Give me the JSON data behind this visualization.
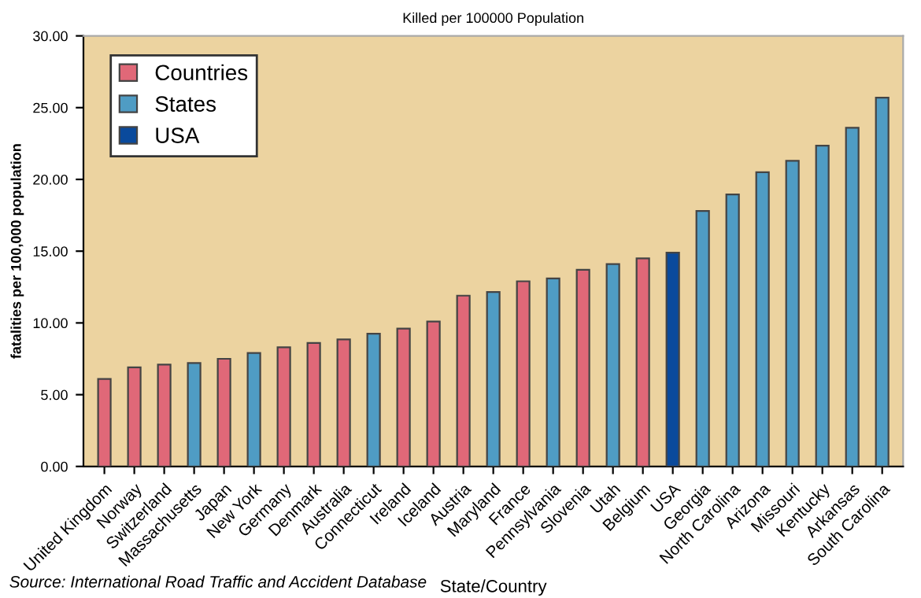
{
  "chart_data": {
    "type": "bar",
    "title": "Killed per 100000 Population",
    "xlabel": "State/Country",
    "ylabel": "fatalities per 100,000 population",
    "categories": [
      "United Kingdom",
      "Norway",
      "Switzerland",
      "Massachusetts",
      "Japan",
      "New York",
      "Germany",
      "Denmark",
      "Australia",
      "Connecticut",
      "Ireland",
      "Iceland",
      "Austria",
      "Maryland",
      "France",
      "Pennsylvania",
      "Slovenia",
      "Utah",
      "Belgium",
      "USA",
      "Georgia",
      "North Carolina",
      "Arizona",
      "Missouri",
      "Kentucky",
      "Arkansas",
      "South Carolina"
    ],
    "series": [
      {
        "name": "Countries",
        "color": "#e06878",
        "values": [
          6.1,
          6.9,
          7.1,
          null,
          7.5,
          null,
          8.3,
          8.6,
          8.85,
          null,
          9.6,
          10.1,
          11.9,
          null,
          12.9,
          null,
          13.7,
          null,
          14.5,
          null,
          null,
          null,
          null,
          null,
          null,
          null,
          null
        ]
      },
      {
        "name": "States",
        "color": "#4f9cc4",
        "values": [
          null,
          null,
          null,
          7.2,
          null,
          7.9,
          null,
          null,
          null,
          9.25,
          null,
          null,
          null,
          12.15,
          null,
          13.1,
          null,
          14.1,
          null,
          null,
          17.8,
          18.95,
          20.5,
          21.3,
          22.35,
          23.6,
          25.7
        ]
      },
      {
        "name": "USA",
        "color": "#0a4a9c",
        "values": [
          null,
          null,
          null,
          null,
          null,
          null,
          null,
          null,
          null,
          null,
          null,
          null,
          null,
          null,
          null,
          null,
          null,
          null,
          null,
          14.9,
          null,
          null,
          null,
          null,
          null,
          null,
          null
        ]
      }
    ],
    "ylim": [
      0,
      30
    ],
    "yticks": [
      {
        "value": 0,
        "label": "0.00"
      },
      {
        "value": 5,
        "label": "5.00"
      },
      {
        "value": 10,
        "label": "10.00"
      },
      {
        "value": 15,
        "label": "15.00"
      },
      {
        "value": 20,
        "label": "20.00"
      },
      {
        "value": 25,
        "label": "25.00"
      },
      {
        "value": 30,
        "label": "30.00"
      }
    ],
    "legend": "top left",
    "annotations": [
      "Source: International Road Traffic and Accident Database"
    ]
  }
}
